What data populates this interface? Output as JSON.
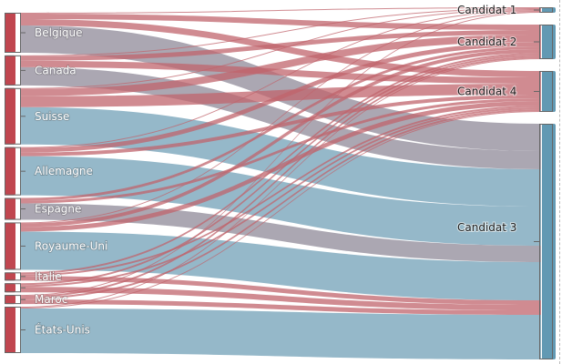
{
  "diagram_type": "sankey",
  "colors": {
    "source_node": "#c0464f",
    "target_node": "#6299b3",
    "link_blue": "#8fb4c6",
    "link_grey": "#a6a2ae",
    "link_red": "#c0646c"
  },
  "sources": [
    {
      "label": "Belgique"
    },
    {
      "label": "Canada"
    },
    {
      "label": "Suisse"
    },
    {
      "label": "Allemagne"
    },
    {
      "label": "Espagne"
    },
    {
      "label": "Royaume-Uni"
    },
    {
      "label": "Italie"
    },
    {
      "label": ""
    },
    {
      "label": "Maroc"
    },
    {
      "label": "États-Unis"
    }
  ],
  "targets": [
    {
      "label": "Candidat 1"
    },
    {
      "label": "Candidat 2"
    },
    {
      "label": "Candidat 4"
    },
    {
      "label": "Candidat 3"
    }
  ],
  "links": [
    {
      "s": 0,
      "t": 0,
      "v": 1,
      "c": "red"
    },
    {
      "s": 0,
      "t": 1,
      "v": 6,
      "c": "red"
    },
    {
      "s": 0,
      "t": 2,
      "v": 7,
      "c": "red"
    },
    {
      "s": 0,
      "t": 3,
      "v": 30,
      "c": "grey"
    },
    {
      "s": 1,
      "t": 0,
      "v": 1,
      "c": "red"
    },
    {
      "s": 1,
      "t": 1,
      "v": 5,
      "c": "red"
    },
    {
      "s": 1,
      "t": 2,
      "v": 7,
      "c": "red"
    },
    {
      "s": 1,
      "t": 3,
      "v": 20,
      "c": "grey"
    },
    {
      "s": 2,
      "t": 0,
      "v": 1,
      "c": "red"
    },
    {
      "s": 2,
      "t": 1,
      "v": 8,
      "c": "red"
    },
    {
      "s": 2,
      "t": 2,
      "v": 12,
      "c": "red"
    },
    {
      "s": 2,
      "t": 3,
      "v": 41,
      "c": "blue"
    },
    {
      "s": 3,
      "t": 0,
      "v": 1,
      "c": "red"
    },
    {
      "s": 3,
      "t": 1,
      "v": 5,
      "c": "red"
    },
    {
      "s": 3,
      "t": 2,
      "v": 4,
      "c": "red"
    },
    {
      "s": 3,
      "t": 3,
      "v": 43,
      "c": "blue"
    },
    {
      "s": 4,
      "t": 1,
      "v": 3,
      "c": "red"
    },
    {
      "s": 4,
      "t": 2,
      "v": 3,
      "c": "red"
    },
    {
      "s": 4,
      "t": 3,
      "v": 18,
      "c": "grey"
    },
    {
      "s": 5,
      "t": 0,
      "v": 1,
      "c": "red"
    },
    {
      "s": 5,
      "t": 1,
      "v": 4,
      "c": "red"
    },
    {
      "s": 5,
      "t": 2,
      "v": 5,
      "c": "red"
    },
    {
      "s": 5,
      "t": 3,
      "v": 42,
      "c": "blue"
    },
    {
      "s": 6,
      "t": 1,
      "v": 2,
      "c": "red"
    },
    {
      "s": 6,
      "t": 2,
      "v": 2,
      "c": "red"
    },
    {
      "s": 6,
      "t": 3,
      "v": 5,
      "c": "red"
    },
    {
      "s": 7,
      "t": 1,
      "v": 2,
      "c": "red"
    },
    {
      "s": 7,
      "t": 2,
      "v": 2,
      "c": "red"
    },
    {
      "s": 7,
      "t": 3,
      "v": 6,
      "c": "red"
    },
    {
      "s": 8,
      "t": 0,
      "v": 1,
      "c": "red"
    },
    {
      "s": 8,
      "t": 1,
      "v": 2,
      "c": "red"
    },
    {
      "s": 8,
      "t": 2,
      "v": 2,
      "c": "red"
    },
    {
      "s": 8,
      "t": 3,
      "v": 5,
      "c": "red"
    },
    {
      "s": 9,
      "t": 1,
      "v": 1,
      "c": "red"
    },
    {
      "s": 9,
      "t": 2,
      "v": 1,
      "c": "red"
    },
    {
      "s": 9,
      "t": 3,
      "v": 49,
      "c": "blue"
    }
  ]
}
